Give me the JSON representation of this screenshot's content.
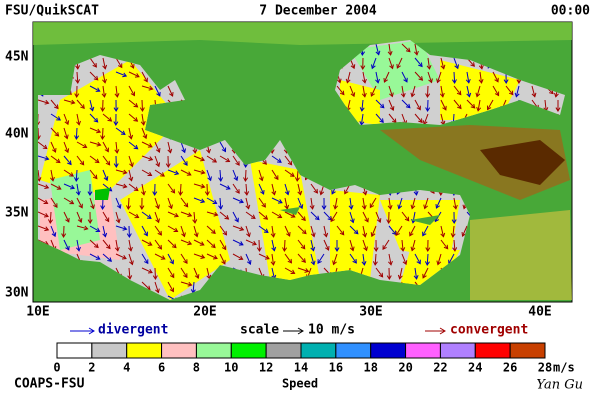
{
  "header": {
    "left": "FSU/QuikSCAT",
    "center": "7 December 2004",
    "right": "00:00"
  },
  "map": {
    "lat_labels": [
      "45N",
      "40N",
      "35N",
      "30N"
    ],
    "lon_labels": [
      "10E",
      "20E",
      "30E",
      "40E"
    ]
  },
  "legend": {
    "divergent": "divergent",
    "scale": "scale",
    "scale_value": "10 m/s",
    "convergent": "convergent"
  },
  "colorbar": {
    "ticks": [
      0,
      2,
      4,
      6,
      8,
      10,
      12,
      14,
      16,
      18,
      20,
      22,
      24,
      26,
      28
    ],
    "unit": "m/s",
    "title": "Speed",
    "colors": [
      "#ffffff",
      "#c8c8c8",
      "#ffff00",
      "#ffc0c0",
      "#98f898",
      "#00f000",
      "#a0a0a0",
      "#00b0b0",
      "#3090ff",
      "#0000d0",
      "#ff60ff",
      "#b080ff",
      "#ff0000",
      "#c84000"
    ]
  },
  "footer": {
    "left": "COAPS-FSU",
    "right": "Yan Gu"
  }
}
